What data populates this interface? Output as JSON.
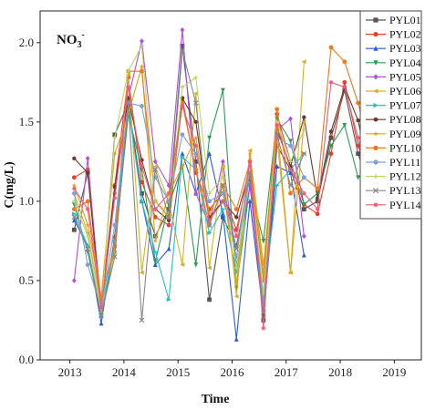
{
  "chart_data": {
    "type": "line",
    "title": "",
    "annotation": "NO",
    "annotation_sub": "3",
    "annotation_sup": "-",
    "xlabel": "Time",
    "ylabel": "C(mg/L)",
    "xlim": [
      2012.45,
      2019.5
    ],
    "ylim": [
      0.0,
      2.2
    ],
    "xticks": [
      2013,
      2014,
      2015,
      2016,
      2017,
      2018,
      2019
    ],
    "yticks": [
      0.0,
      0.5,
      1.0,
      1.5,
      2.0
    ],
    "ytick_labels": [
      "0.0",
      "0.5",
      "1.0",
      "1.5",
      "2.0"
    ],
    "legend_position": "top-right",
    "x": [
      2013.08,
      2013.33,
      2013.58,
      2013.83,
      2014.08,
      2014.33,
      2014.58,
      2014.83,
      2015.08,
      2015.33,
      2015.58,
      2015.83,
      2016.08,
      2016.33,
      2016.58,
      2016.83,
      2017.08,
      2017.33,
      2017.58,
      2017.83,
      2018.08,
      2018.33,
      2018.58,
      2018.83,
      2019.08
    ],
    "series": [
      {
        "name": "PYL01",
        "color": "#555555",
        "marker": "square",
        "values": [
          0.82,
          1.18,
          0.31,
          1.42,
          1.62,
          1.05,
          0.78,
          0.95,
          1.98,
          1.25,
          0.38,
          0.9,
          0.72,
          1.15,
          0.25,
          1.35,
          1.2,
          0.95,
          1.0,
          1.4,
          1.7,
          1.3,
          1.05,
          1.22,
          1.2
        ]
      },
      {
        "name": "PYL02",
        "color": "#e8402a",
        "marker": "circle",
        "values": [
          1.15,
          1.2,
          0.35,
          1.1,
          1.78,
          1.12,
          0.9,
          0.85,
          1.65,
          1.18,
          0.95,
          1.05,
          0.82,
          1.2,
          0.4,
          1.55,
          1.25,
          0.98,
          0.92,
          1.3,
          1.75,
          1.35,
          1.12,
          1.2,
          1.24
        ]
      },
      {
        "name": "PYL03",
        "color": "#2f5bd8",
        "marker": "triangle-up",
        "values": [
          0.88,
          0.72,
          0.23,
          0.78,
          1.6,
          1.0,
          0.6,
          0.7,
          1.3,
          1.05,
          1.3,
          0.92,
          0.13,
          1.0,
          0.28,
          1.22,
          1.18,
          0.66,
          null,
          null,
          null,
          null,
          null,
          null,
          null
        ]
      },
      {
        "name": "PYL04",
        "color": "#2e9b57",
        "marker": "triangle-down",
        "values": [
          0.98,
          0.68,
          0.28,
          0.7,
          1.55,
          1.2,
          0.62,
          0.98,
          1.22,
          0.6,
          1.4,
          1.7,
          0.45,
          1.1,
          0.75,
          1.52,
          1.38,
          0.98,
          1.05,
          1.35,
          1.48,
          1.15,
          1.2,
          1.18,
          1.2
        ]
      },
      {
        "name": "PYL05",
        "color": "#b24fd8",
        "marker": "diamond",
        "values": [
          0.5,
          1.27,
          0.3,
          1.05,
          1.65,
          2.01,
          1.25,
          1.1,
          2.08,
          1.05,
          0.85,
          1.25,
          0.6,
          1.1,
          0.3,
          1.45,
          1.52,
          0.78,
          null,
          null,
          null,
          null,
          null,
          null,
          null
        ]
      },
      {
        "name": "PYL06",
        "color": "#d6b32f",
        "marker": "triangle-left",
        "values": [
          1.05,
          0.8,
          0.35,
          0.68,
          1.8,
          0.55,
          1.22,
          1.0,
          0.6,
          1.68,
          0.58,
          1.22,
          0.4,
          1.32,
          0.55,
          1.4,
          0.55,
          1.88,
          null,
          null,
          null,
          null,
          null,
          null,
          null
        ]
      },
      {
        "name": "PYL07",
        "color": "#22c0d0",
        "marker": "triangle-right",
        "values": [
          0.92,
          0.72,
          0.28,
          0.75,
          1.6,
          1.0,
          0.68,
          0.38,
          1.28,
          1.2,
          0.8,
          0.95,
          0.55,
          1.18,
          0.38,
          1.1,
          1.2,
          1.3,
          null,
          null,
          null,
          null,
          null,
          null,
          null
        ]
      },
      {
        "name": "PYL08",
        "color": "#6b3b2a",
        "marker": "hexagon",
        "values": [
          1.27,
          1.18,
          0.3,
          1.09,
          1.65,
          1.26,
          0.95,
          0.88,
          1.65,
          1.5,
          0.9,
          1.0,
          0.9,
          1.2,
          0.28,
          1.45,
          1.22,
          1.53,
          1.02,
          1.44,
          1.72,
          1.51,
          1.1,
          1.22,
          1.25
        ]
      },
      {
        "name": "PYL09",
        "color": "#e2a21a",
        "marker": "star",
        "values": [
          1.1,
          0.85,
          0.4,
          1.3,
          1.55,
          1.85,
          0.75,
          1.05,
          1.22,
          1.4,
          0.92,
          1.1,
          0.48,
          1.3,
          0.6,
          1.48,
          0.55,
          1.5,
          null,
          null,
          null,
          null,
          null,
          null,
          null
        ]
      },
      {
        "name": "PYL10",
        "color": "#f17819",
        "marker": "circle",
        "values": [
          0.95,
          1.0,
          0.38,
          0.72,
          1.82,
          1.82,
          1.0,
          0.9,
          1.62,
          1.2,
          0.85,
          1.1,
          0.95,
          1.25,
          0.5,
          1.58,
          1.05,
          1.15,
          1.08,
          1.97,
          1.88,
          1.62,
          1.3,
          1.22,
          1.4
        ]
      },
      {
        "name": "PYL11",
        "color": "#7aa3d8",
        "marker": "circle",
        "values": [
          1.05,
          0.6,
          0.32,
          0.85,
          1.62,
          1.6,
          1.15,
          1.0,
          1.42,
          1.3,
          1.0,
          1.05,
          0.65,
          1.22,
          0.35,
          1.4,
          1.35,
          1.15,
          null,
          null,
          null,
          null,
          null,
          null,
          null
        ]
      },
      {
        "name": "PYL12",
        "color": "#b8d86a",
        "marker": "plus",
        "values": [
          1.0,
          0.78,
          0.3,
          1.4,
          1.82,
          1.98,
          1.0,
          0.92,
          1.72,
          1.78,
          1.05,
          1.15,
          0.58,
          1.2,
          0.42,
          1.5,
          1.25,
          1.45,
          null,
          null,
          null,
          null,
          null,
          null,
          null
        ]
      },
      {
        "name": "PYL13",
        "color": "#888888",
        "marker": "x",
        "values": [
          0.9,
          0.7,
          0.28,
          0.65,
          1.62,
          0.25,
          1.2,
          0.9,
          1.95,
          1.62,
          0.85,
          1.1,
          0.7,
          1.18,
          0.3,
          1.42,
          1.1,
          1.3,
          null,
          null,
          null,
          null,
          null,
          null,
          null
        ]
      },
      {
        "name": "PYL14",
        "color": "#f05a78",
        "marker": "asterisk",
        "values": [
          1.08,
          0.95,
          0.33,
          1.02,
          1.72,
          1.22,
          0.95,
          1.05,
          1.6,
          1.35,
          0.88,
          1.0,
          0.78,
          1.25,
          0.2,
          1.48,
          1.2,
          1.05,
          0.95,
          1.75,
          1.72,
          1.4,
          1.0,
          1.2,
          1.22
        ]
      }
    ]
  }
}
